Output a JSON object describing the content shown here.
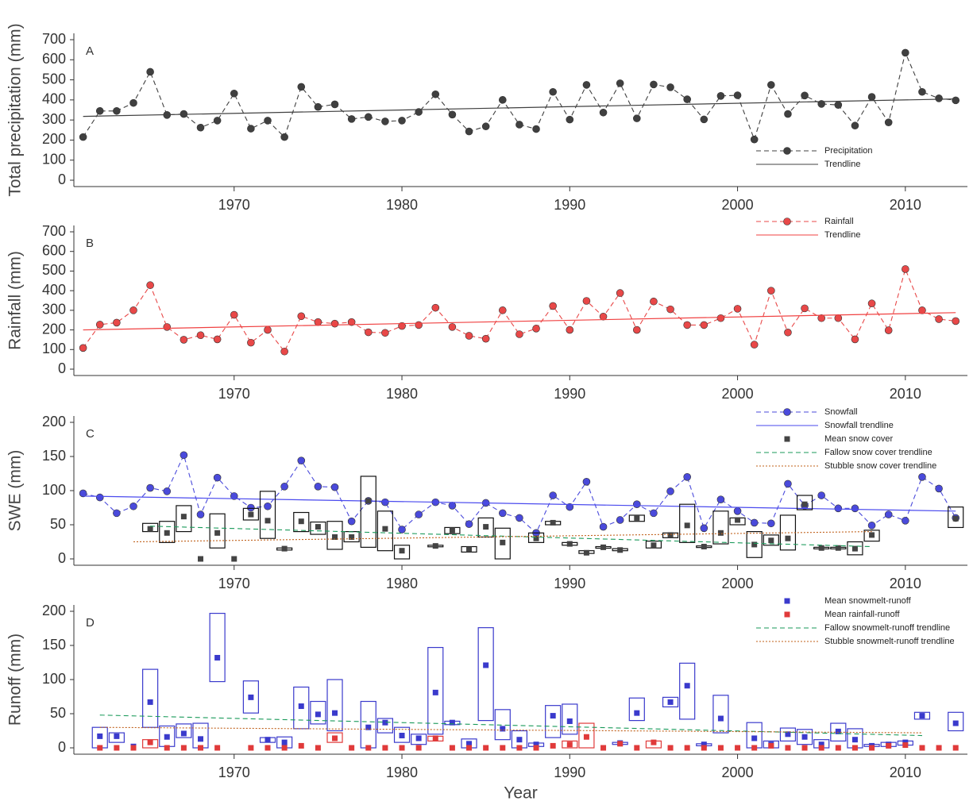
{
  "chart_data": [
    {
      "type": "line",
      "label": "A",
      "ylabel": "Total precipitation (mm)",
      "xlim": [
        1960.45,
        2013.7
      ],
      "ylim": [
        0,
        700
      ],
      "yticks": [
        0,
        100,
        200,
        300,
        400,
        500,
        600,
        700
      ],
      "xticks": [
        1970,
        1980,
        1990,
        2000,
        2010
      ],
      "legend": "lower right",
      "x": [
        1961,
        1962,
        1963,
        1964,
        1965,
        1966,
        1967,
        1968,
        1969,
        1970,
        1971,
        1972,
        1973,
        1974,
        1975,
        1976,
        1977,
        1978,
        1979,
        1980,
        1981,
        1982,
        1983,
        1984,
        1985,
        1986,
        1987,
        1988,
        1989,
        1990,
        1991,
        1992,
        1993,
        1994,
        1995,
        1996,
        1997,
        1998,
        1999,
        2000,
        2001,
        2002,
        2003,
        2004,
        2005,
        2006,
        2007,
        2008,
        2009,
        2010,
        2011,
        2012,
        2013
      ],
      "series": [
        {
          "name": "Precipitation",
          "color": "#404040",
          "line": "dashed",
          "marker": "circle",
          "values": [
            215,
            345,
            345,
            385,
            540,
            325,
            330,
            262,
            297,
            432,
            257,
            297,
            215,
            465,
            365,
            378,
            305,
            315,
            293,
            297,
            340,
            428,
            327,
            243,
            268,
            400,
            277,
            255,
            440,
            302,
            475,
            337,
            483,
            308,
            477,
            463,
            403,
            303,
            420,
            423,
            203,
            475,
            330,
            422,
            380,
            375,
            272,
            415,
            288,
            635,
            440,
            408,
            398
          ]
        },
        {
          "name": "Trendline",
          "color": "#404040",
          "line": "solid",
          "marker": null,
          "x": [
            1961,
            2013
          ],
          "values": [
            318,
            405
          ]
        }
      ]
    },
    {
      "type": "line",
      "label": "B",
      "ylabel": "Rainfall (mm)",
      "xlim": [
        1960.45,
        2013.7
      ],
      "ylim": [
        0,
        700
      ],
      "yticks": [
        0,
        100,
        200,
        300,
        400,
        500,
        600,
        700
      ],
      "xticks": [
        1970,
        1980,
        1990,
        2000,
        2010
      ],
      "legend": "upper right",
      "x": [
        1961,
        1962,
        1963,
        1964,
        1965,
        1966,
        1967,
        1968,
        1969,
        1970,
        1971,
        1972,
        1973,
        1974,
        1975,
        1976,
        1977,
        1978,
        1979,
        1980,
        1981,
        1982,
        1983,
        1984,
        1985,
        1986,
        1987,
        1988,
        1989,
        1990,
        1991,
        1992,
        1993,
        1994,
        1995,
        1996,
        1997,
        1998,
        1999,
        2000,
        2001,
        2002,
        2003,
        2004,
        2005,
        2006,
        2007,
        2008,
        2009,
        2010,
        2011,
        2012,
        2013
      ],
      "series": [
        {
          "name": "Rainfall",
          "color": "#e84848",
          "line": "dashed",
          "marker": "circle",
          "values": [
            108,
            227,
            237,
            300,
            428,
            215,
            150,
            173,
            152,
            277,
            135,
            200,
            90,
            270,
            240,
            232,
            240,
            188,
            185,
            220,
            225,
            313,
            215,
            170,
            155,
            300,
            178,
            207,
            322,
            200,
            348,
            268,
            388,
            200,
            345,
            305,
            225,
            225,
            260,
            308,
            125,
            400,
            187,
            310,
            260,
            260,
            152,
            335,
            198,
            510,
            300,
            255,
            245
          ]
        },
        {
          "name": "Trendline",
          "color": "#f04040",
          "line": "solid",
          "marker": null,
          "x": [
            1961,
            2013
          ],
          "values": [
            200,
            288
          ]
        }
      ]
    },
    {
      "type": "line",
      "label": "C",
      "ylabel": "SWE (mm)",
      "xlim": [
        1960.45,
        2013.7
      ],
      "ylim": [
        0,
        200
      ],
      "yticks": [
        0,
        50,
        100,
        150,
        200
      ],
      "xticks": [
        1970,
        1980,
        1990,
        2000,
        2010
      ],
      "legend": "upper right",
      "x": [
        1961,
        1962,
        1963,
        1964,
        1965,
        1966,
        1967,
        1968,
        1969,
        1970,
        1971,
        1972,
        1973,
        1974,
        1975,
        1976,
        1977,
        1978,
        1979,
        1980,
        1981,
        1982,
        1983,
        1984,
        1985,
        1986,
        1987,
        1988,
        1989,
        1990,
        1991,
        1992,
        1993,
        1994,
        1995,
        1996,
        1997,
        1998,
        1999,
        2000,
        2001,
        2002,
        2003,
        2004,
        2005,
        2006,
        2007,
        2008,
        2009,
        2010,
        2011,
        2012,
        2013
      ],
      "series": [
        {
          "name": "Snowfall",
          "color": "#4a4adb",
          "line": "dashed",
          "marker": "circle",
          "values": [
            96,
            90,
            67,
            77,
            104,
            99,
            152,
            65,
            119,
            92,
            75,
            77,
            106,
            144,
            106,
            105,
            55,
            85,
            83,
            43,
            65,
            83,
            78,
            51,
            82,
            67,
            60,
            38,
            93,
            76,
            113,
            47,
            57,
            80,
            67,
            99,
            120,
            45,
            87,
            70,
            53,
            52,
            110,
            78,
            93,
            74,
            74,
            49,
            65,
            56,
            120,
            103,
            60
          ]
        },
        {
          "name": "Snowfall trendline",
          "color": "#4a4aee",
          "line": "solid",
          "marker": null,
          "x": [
            1961,
            2013
          ],
          "values": [
            92,
            70
          ]
        },
        {
          "name": "Mean snow cover",
          "color": "#444444",
          "line": null,
          "marker": "square",
          "values": [
            null,
            null,
            null,
            null,
            44,
            38,
            62,
            0,
            38,
            0,
            65,
            56,
            15,
            55,
            47,
            32,
            32,
            85,
            44,
            12,
            null,
            19,
            42,
            14,
            47,
            24,
            null,
            30,
            53,
            22,
            9,
            17,
            13,
            60,
            20,
            35,
            49,
            18,
            38,
            57,
            21,
            27,
            30,
            80,
            16,
            16,
            15,
            35,
            null,
            null,
            null,
            null,
            59
          ],
          "low": [
            null,
            null,
            null,
            null,
            40,
            24,
            40,
            null,
            16,
            null,
            57,
            30,
            13,
            40,
            36,
            14,
            25,
            17,
            12,
            0,
            null,
            18,
            37,
            10,
            32,
            0,
            null,
            24,
            50,
            20,
            8,
            16,
            12,
            55,
            16,
            31,
            24,
            17,
            22,
            50,
            2,
            20,
            13,
            72,
            15,
            15,
            6,
            26,
            null,
            null,
            null,
            null,
            46
          ],
          "high": [
            null,
            null,
            null,
            null,
            52,
            55,
            78,
            null,
            66,
            null,
            74,
            99,
            16,
            68,
            54,
            55,
            40,
            121,
            70,
            20,
            null,
            20,
            46,
            18,
            60,
            45,
            null,
            38,
            55,
            24,
            12,
            18,
            15,
            64,
            26,
            38,
            80,
            19,
            70,
            60,
            40,
            35,
            64,
            93,
            17,
            17,
            25,
            42,
            null,
            null,
            null,
            null,
            76
          ]
        },
        {
          "name": "Fallow snow cover trendline",
          "color": "#1a9a5a",
          "line": "dashed",
          "marker": null,
          "x": [
            1965,
            2008
          ],
          "values": [
            48,
            18
          ]
        },
        {
          "name": "Stubble snow cover trendline",
          "color": "#c0601a",
          "line": "dotted",
          "marker": null,
          "x": [
            1964,
            2008
          ],
          "values": [
            25,
            40
          ]
        }
      ]
    },
    {
      "type": "line",
      "label": "D",
      "ylabel": "Runoff (mm)",
      "xlabel": "Year",
      "xlim": [
        1960.45,
        2013.7
      ],
      "ylim": [
        0,
        200
      ],
      "yticks": [
        0,
        50,
        100,
        150,
        200
      ],
      "xticks": [
        1970,
        1980,
        1990,
        2000,
        2010
      ],
      "legend": "upper right",
      "x": [
        1962,
        1963,
        1964,
        1965,
        1966,
        1967,
        1968,
        1969,
        1970,
        1971,
        1972,
        1973,
        1974,
        1975,
        1976,
        1977,
        1978,
        1979,
        1980,
        1981,
        1982,
        1983,
        1984,
        1985,
        1986,
        1987,
        1988,
        1989,
        1990,
        1991,
        1992,
        1993,
        1994,
        1995,
        1996,
        1997,
        1998,
        1999,
        2000,
        2001,
        2002,
        2003,
        2004,
        2005,
        2006,
        2007,
        2008,
        2009,
        2010,
        2011,
        2012,
        2013
      ],
      "series": [
        {
          "name": "Mean snowmelt-runoff",
          "color": "#3a3acc",
          "line": null,
          "marker": "square",
          "values": [
            17,
            17,
            2,
            67,
            16,
            21,
            13,
            132,
            null,
            74,
            12,
            8,
            61,
            49,
            51,
            null,
            30,
            37,
            18,
            14,
            81,
            37,
            6,
            121,
            28,
            12,
            5,
            47,
            39,
            null,
            null,
            7,
            51,
            null,
            67,
            91,
            5,
            43,
            null,
            14,
            5,
            20,
            16,
            5,
            24,
            12,
            3,
            5,
            8,
            47,
            null,
            36
          ],
          "low": [
            0,
            8,
            null,
            30,
            2,
            15,
            0,
            97,
            null,
            51,
            8,
            0,
            28,
            35,
            25,
            null,
            0,
            22,
            8,
            5,
            20,
            34,
            0,
            40,
            12,
            0,
            2,
            15,
            20,
            null,
            null,
            5,
            40,
            null,
            60,
            42,
            3,
            22,
            null,
            0,
            0,
            10,
            5,
            0,
            10,
            0,
            2,
            2,
            4,
            42,
            null,
            25
          ],
          "high": [
            30,
            22,
            null,
            115,
            32,
            35,
            36,
            197,
            null,
            98,
            15,
            16,
            89,
            68,
            100,
            null,
            68,
            43,
            30,
            20,
            147,
            39,
            13,
            176,
            56,
            25,
            7,
            62,
            64,
            null,
            null,
            8,
            73,
            null,
            74,
            124,
            6,
            77,
            null,
            37,
            10,
            29,
            27,
            12,
            36,
            28,
            5,
            8,
            10,
            52,
            null,
            52
          ]
        },
        {
          "name": "Mean rainfall-runoff",
          "color": "#e03a3a",
          "line": null,
          "marker": "square",
          "values": [
            0,
            0,
            0,
            8,
            0,
            0,
            0,
            0,
            null,
            0,
            0,
            0,
            3,
            0,
            14,
            0,
            0,
            0,
            0,
            0,
            14,
            0,
            0,
            0,
            0,
            0,
            0,
            3,
            5,
            16,
            0,
            6,
            0,
            8,
            0,
            0,
            0,
            0,
            0,
            0,
            3,
            0,
            0,
            0,
            0,
            0,
            0,
            3,
            4,
            0,
            0,
            0
          ],
          "low": [
            null,
            null,
            null,
            0,
            null,
            null,
            null,
            null,
            null,
            null,
            null,
            null,
            null,
            null,
            8,
            null,
            null,
            null,
            null,
            null,
            10,
            null,
            null,
            null,
            null,
            null,
            null,
            null,
            0,
            0,
            null,
            null,
            null,
            0,
            null,
            null,
            null,
            null,
            null,
            null,
            null,
            null,
            null,
            null,
            null,
            null,
            null,
            null,
            null,
            null,
            null,
            null
          ],
          "high": [
            null,
            null,
            null,
            12,
            null,
            null,
            null,
            null,
            null,
            null,
            null,
            null,
            null,
            null,
            22,
            null,
            null,
            null,
            null,
            null,
            17,
            null,
            null,
            null,
            null,
            null,
            null,
            null,
            10,
            36,
            null,
            null,
            null,
            10,
            null,
            null,
            null,
            null,
            null,
            null,
            null,
            null,
            null,
            null,
            null,
            null,
            null,
            null,
            null,
            null,
            null,
            null
          ]
        },
        {
          "name": "Fallow snowmelt-runoff trendline",
          "color": "#1a9a5a",
          "line": "dashed",
          "marker": null,
          "x": [
            1962,
            2011
          ],
          "values": [
            48,
            18
          ]
        },
        {
          "name": "Stubble snowmelt-runoff trendline",
          "color": "#c0601a",
          "line": "dotted",
          "marker": null,
          "x": [
            1962,
            2011
          ],
          "values": [
            30,
            22
          ]
        }
      ]
    }
  ]
}
